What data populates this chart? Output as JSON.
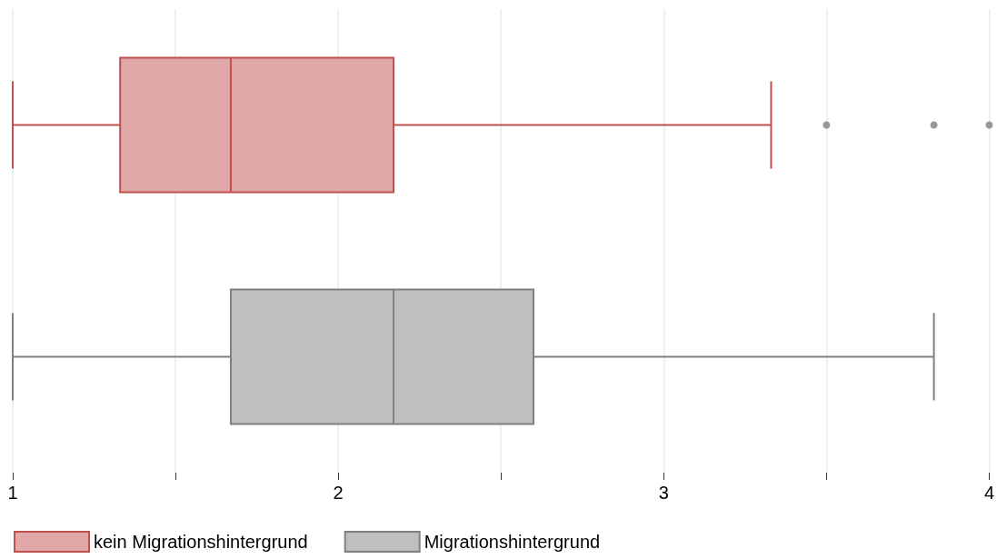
{
  "chart_data": {
    "type": "box",
    "orientation": "horizontal",
    "categories": [
      null,
      null
    ],
    "series": [
      {
        "name": "kein Migrationshintergrund",
        "color": "#e0a8a8",
        "boxes": [
          {
            "low": 1,
            "q1": 1.33,
            "median": 1.67,
            "q3": 2.17,
            "high": 3.33,
            "outliers": [
              3.5,
              3.83,
              4
            ]
          },
          null
        ]
      },
      {
        "name": "Migrationshintergrund",
        "color": "#bfbfbf",
        "boxes": [
          null,
          {
            "low": 1,
            "q1": 1.67,
            "median": 2.17,
            "q3": 2.6,
            "high": 3.83
          }
        ]
      }
    ],
    "xlim": [
      1,
      4
    ],
    "xticks": [
      1,
      {
        "value": 1.5,
        "label": null
      },
      2,
      {
        "value": 2.5,
        "label": null
      },
      3,
      {
        "value": 3.5,
        "label": null
      },
      4
    ],
    "grid": "x",
    "legend": "bottom left"
  }
}
